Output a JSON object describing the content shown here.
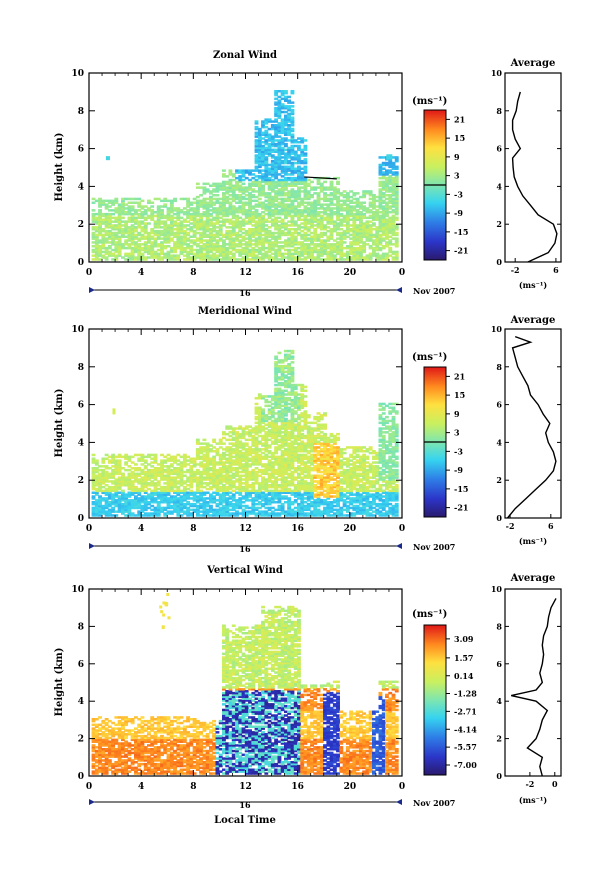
{
  "figure": {
    "x_axis_label": "Local Time",
    "date_label": "Nov 2007",
    "day_label": "16",
    "average_label": "Average",
    "unit_colorbar": "(ms⁻¹)",
    "unit_avg": "(ms⁻¹)",
    "ylabel": "Height (km)"
  },
  "chart_data": [
    {
      "type": "heatmap",
      "title": "Zonal Wind",
      "xlabel": "",
      "ylabel": "Height (km)",
      "xlim": [
        0,
        24
      ],
      "ylim": [
        0,
        10
      ],
      "x_ticks": [
        "0",
        "4",
        "8",
        "12",
        "16",
        "20",
        "0"
      ],
      "y_ticks": [
        "0",
        "2",
        "4",
        "6",
        "8",
        "10"
      ],
      "colorbar": {
        "unit": "(ms⁻¹)",
        "range": [
          -24,
          24
        ],
        "ticks": [
          "21",
          "15",
          "9",
          "3",
          "-3",
          "-9",
          "-15",
          "-21"
        ],
        "tick_values": [
          21,
          15,
          9,
          3,
          -3,
          -9,
          -15,
          -21
        ],
        "zero_line": true
      },
      "profile": {
        "title": "Average",
        "xlim": [
          -4,
          7
        ],
        "x_ticks": [
          "-2",
          "6"
        ],
        "x_tick_values": [
          -2,
          6
        ],
        "y_ticks": [
          "0",
          "2",
          "4",
          "6",
          "8",
          "10"
        ],
        "xlabel": "(ms⁻¹)",
        "heights": [
          0,
          0.5,
          1,
          1.5,
          2,
          2.5,
          3,
          3.5,
          4,
          4.5,
          5,
          5.5,
          6,
          6.5,
          7,
          7.5,
          8,
          8.5,
          9
        ],
        "values": [
          0.5,
          4.5,
          5.8,
          6.2,
          5.5,
          2.5,
          1.0,
          -0.5,
          -1.5,
          -2.2,
          -2.4,
          -2.5,
          -1.0,
          -2.0,
          -2.5,
          -2.5,
          -1.8,
          -1.5,
          -1.0
        ]
      }
    },
    {
      "type": "heatmap",
      "title": "Meridional Wind",
      "xlabel": "",
      "ylabel": "Height (km)",
      "xlim": [
        0,
        24
      ],
      "ylim": [
        0,
        10
      ],
      "x_ticks": [
        "0",
        "4",
        "8",
        "12",
        "16",
        "20",
        "0"
      ],
      "y_ticks": [
        "0",
        "2",
        "4",
        "6",
        "8",
        "10"
      ],
      "colorbar": {
        "unit": "(ms⁻¹)",
        "range": [
          -24,
          24
        ],
        "ticks": [
          "21",
          "15",
          "9",
          "3",
          "-3",
          "-9",
          "-15",
          "-21"
        ],
        "tick_values": [
          21,
          15,
          9,
          3,
          -3,
          -9,
          -15,
          -21
        ],
        "zero_line": true
      },
      "profile": {
        "title": "Average",
        "xlim": [
          -3,
          8
        ],
        "x_ticks": [
          "-2",
          "6"
        ],
        "x_tick_values": [
          -2,
          6
        ],
        "y_ticks": [
          "0",
          "2",
          "4",
          "6",
          "8",
          "10"
        ],
        "xlabel": "(ms⁻¹)",
        "heights": [
          0,
          0.5,
          1,
          1.5,
          2,
          2.5,
          3,
          3.5,
          4,
          4.5,
          5,
          5.5,
          6,
          6.5,
          7,
          7.5,
          8,
          8.5,
          9,
          9.3,
          9.6
        ],
        "values": [
          -2.5,
          -1.0,
          1.0,
          3.0,
          5.0,
          6.5,
          7.0,
          6.5,
          5.5,
          5.0,
          5.8,
          4.5,
          3.5,
          2.0,
          1.5,
          0.5,
          -0.5,
          -1.0,
          -1.5,
          2.0,
          -1.0
        ]
      }
    },
    {
      "type": "heatmap",
      "title": "Vertical Wind",
      "xlabel": "Local Time",
      "ylabel": "Height (km)",
      "xlim": [
        0,
        24
      ],
      "ylim": [
        0,
        10
      ],
      "x_ticks": [
        "0",
        "4",
        "8",
        "12",
        "16",
        "20",
        "0"
      ],
      "y_ticks": [
        "0",
        "2",
        "4",
        "6",
        "8",
        "10"
      ],
      "colorbar": {
        "unit": "(ms⁻¹)",
        "range": [
          -7.8,
          4.2
        ],
        "ticks": [
          "3.09",
          "1.57",
          "0.14",
          "-1.28",
          "-2.71",
          "-4.14",
          "-5.57",
          "-7.00"
        ],
        "tick_values": [
          3.09,
          1.57,
          0.14,
          -1.28,
          -2.71,
          -4.14,
          -5.57,
          -7.0
        ],
        "zero_line": false
      },
      "profile": {
        "title": "Average",
        "xlim": [
          -4,
          0.5
        ],
        "x_ticks": [
          "-2",
          "0"
        ],
        "x_tick_values": [
          -2,
          0
        ],
        "y_ticks": [
          "0",
          "2",
          "4",
          "6",
          "8",
          "10"
        ],
        "xlabel": "(ms⁻¹)",
        "heights": [
          0,
          0.5,
          1,
          1.5,
          2,
          2.5,
          3,
          3.5,
          4,
          4.3,
          4.6,
          5,
          5.5,
          6,
          6.5,
          7,
          7.5,
          8,
          8.5,
          9,
          9.5
        ],
        "values": [
          -1.0,
          -1.2,
          -1.0,
          -2.2,
          -1.5,
          -1.2,
          -1.0,
          -0.6,
          -1.5,
          -3.5,
          -1.5,
          -1.0,
          -1.2,
          -1.0,
          -0.9,
          -1.0,
          -0.9,
          -0.6,
          -0.5,
          -0.3,
          0.1
        ]
      }
    }
  ]
}
